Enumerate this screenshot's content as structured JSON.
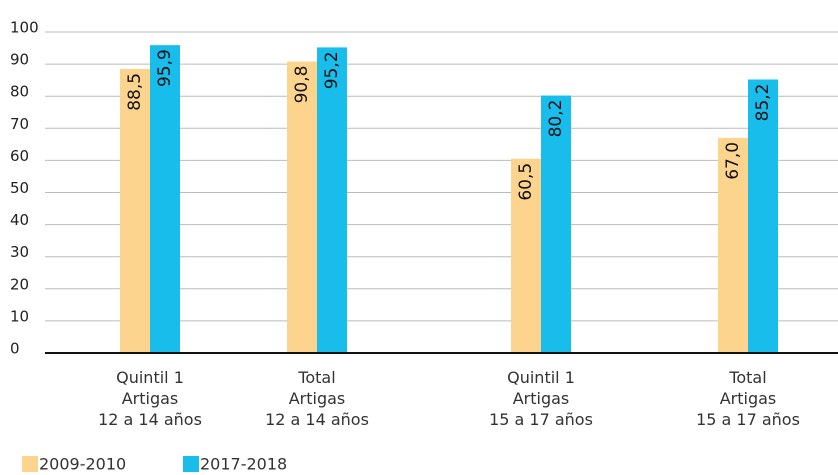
{
  "chart_data": {
    "type": "bar",
    "categories": [
      [
        "Quintil 1",
        "Artigas",
        "12 a 14 años"
      ],
      [
        "Total",
        "Artigas",
        "12 a 14 años"
      ],
      [
        "Quintil 1",
        "Artigas",
        "15 a 17 años"
      ],
      [
        "Total",
        "Artigas",
        "15 a 17 años"
      ]
    ],
    "series": [
      {
        "name": "2009-2010",
        "color": "#fdd48e",
        "values": [
          88.5,
          90.8,
          60.5,
          67.0
        ],
        "value_labels": [
          "88,5",
          "90,8",
          "60,5",
          "67,0"
        ]
      },
      {
        "name": "2017-2018",
        "color": "#19bdeb",
        "values": [
          95.9,
          95.2,
          80.2,
          85.2
        ],
        "value_labels": [
          "95,9",
          "95,2",
          "80,2",
          "85,2"
        ]
      }
    ],
    "ylim": [
      0,
      100
    ],
    "yticks": [
      0,
      10,
      20,
      30,
      40,
      50,
      60,
      70,
      80,
      90,
      100
    ],
    "grid": true,
    "legend": "bottom-left"
  }
}
